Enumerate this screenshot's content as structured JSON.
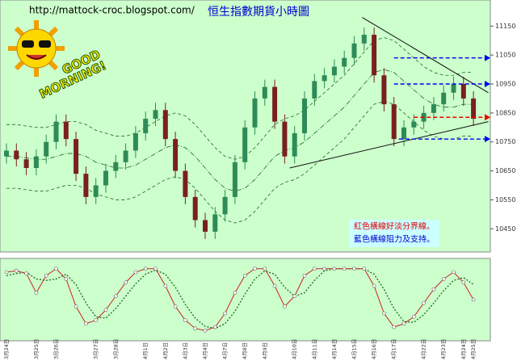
{
  "chart_data": {
    "type": "candlestick",
    "url": "http://mattock-croc.blogspot.com/",
    "title": "恒生指數期貨小時圖",
    "logo_text": [
      "GOOD",
      "MORNING!"
    ],
    "notes": [
      {
        "text": "紅色橫線好淡分界線。",
        "color": "#e00000"
      },
      {
        "text": "藍色橫線阻力及支持。",
        "color": "#0000cc"
      }
    ],
    "categories": [
      "3月24日",
      null,
      null,
      "3月25日",
      null,
      "3月26日",
      null,
      null,
      null,
      "3月27日",
      null,
      "3月28日",
      null,
      null,
      "4月1日",
      null,
      "4月2日",
      null,
      "4月3日",
      null,
      "4月4日",
      null,
      "4月7日",
      null,
      "4月8日",
      null,
      "4月9日",
      null,
      null,
      "4月10日",
      null,
      "4月11日",
      null,
      "4月14日",
      null,
      "4月15日",
      null,
      "4月16日",
      null,
      "4月17日",
      null,
      null,
      "4月22日",
      null,
      "4月23日",
      null,
      "4月24日",
      "4月25日"
    ],
    "open": [
      10700,
      10720,
      10690,
      10660,
      10700,
      10750,
      10820,
      10760,
      10640,
      10560,
      10600,
      10650,
      10680,
      10720,
      10780,
      10830,
      10860,
      10760,
      10650,
      10560,
      10480,
      10440,
      10500,
      10560,
      10680,
      10800,
      10900,
      10940,
      10820,
      10700,
      10780,
      10900,
      10960,
      10980,
      11010,
      11040,
      11090,
      11120,
      10980,
      10880,
      10760,
      10800,
      10820,
      10850,
      10880,
      10920,
      10950,
      10900
    ],
    "high": [
      10745,
      10745,
      10715,
      10725,
      10775,
      10845,
      10845,
      10785,
      10665,
      10625,
      10675,
      10705,
      10745,
      10805,
      10855,
      10885,
      10885,
      10785,
      10675,
      10585,
      10505,
      10525,
      10585,
      10705,
      10825,
      10925,
      10965,
      10965,
      10845,
      10805,
      10925,
      10985,
      11005,
      11035,
      11065,
      11115,
      11145,
      11145,
      11005,
      10905,
      10825,
      10845,
      10875,
      10905,
      10945,
      10975,
      10975,
      10925
    ],
    "low": [
      10675,
      10665,
      10635,
      10635,
      10675,
      10725,
      10735,
      10615,
      10535,
      10535,
      10575,
      10625,
      10655,
      10695,
      10755,
      10805,
      10735,
      10625,
      10535,
      10455,
      10415,
      10415,
      10475,
      10535,
      10655,
      10775,
      10875,
      10795,
      10675,
      10675,
      10755,
      10875,
      10935,
      10955,
      10985,
      11015,
      11065,
      10955,
      10855,
      10735,
      10735,
      10775,
      10795,
      10825,
      10855,
      10895,
      10875,
      10805
    ],
    "close": [
      10720,
      10690,
      10660,
      10700,
      10750,
      10820,
      10760,
      10640,
      10560,
      10600,
      10650,
      10680,
      10720,
      10780,
      10830,
      10860,
      10760,
      10650,
      10560,
      10480,
      10440,
      10500,
      10560,
      10680,
      10800,
      10900,
      10940,
      10820,
      10700,
      10780,
      10900,
      10960,
      10980,
      11010,
      11040,
      11090,
      11120,
      10980,
      10880,
      10760,
      10800,
      10820,
      10850,
      10880,
      10920,
      10950,
      10900,
      10830
    ],
    "up_color": "#2e8b57",
    "down_color": "#7a1f1f",
    "bands": [
      {
        "color": "#226622",
        "dash": "4 3",
        "values": [
          10810,
          10810,
          10805,
          10800,
          10800,
          10810,
          10820,
          10820,
          10810,
          10790,
          10780,
          10770,
          10770,
          10780,
          10800,
          10820,
          10840,
          10850,
          10840,
          10810,
          10770,
          10730,
          10700,
          10690,
          10700,
          10730,
          10770,
          10810,
          10830,
          10840,
          10860,
          10890,
          10920,
          10950,
          10980,
          11020,
          11060,
          11100,
          11110,
          11100,
          11070,
          11040,
          11010,
          10990,
          10980,
          10980,
          10990,
          10990
        ]
      },
      {
        "color": "#226622",
        "dash": "6 2 1 2",
        "values": [
          10700,
          10700,
          10695,
          10690,
          10690,
          10700,
          10710,
          10710,
          10700,
          10680,
          10670,
          10660,
          10660,
          10670,
          10690,
          10710,
          10730,
          10740,
          10730,
          10700,
          10660,
          10620,
          10590,
          10580,
          10590,
          10620,
          10660,
          10700,
          10720,
          10730,
          10750,
          10780,
          10810,
          10840,
          10870,
          10910,
          10950,
          10990,
          11000,
          10990,
          10960,
          10930,
          10900,
          10880,
          10870,
          10870,
          10880,
          10880
        ]
      },
      {
        "color": "#226622",
        "dash": "4 3",
        "values": [
          10590,
          10590,
          10585,
          10580,
          10580,
          10590,
          10600,
          10600,
          10590,
          10570,
          10560,
          10550,
          10550,
          10560,
          10580,
          10600,
          10620,
          10630,
          10620,
          10590,
          10550,
          10510,
          10480,
          10470,
          10480,
          10510,
          10550,
          10590,
          10610,
          10620,
          10640,
          10670,
          10700,
          10730,
          10760,
          10800,
          10840,
          10880,
          10890,
          10880,
          10850,
          10820,
          10790,
          10770,
          10760,
          10760,
          10770,
          10770
        ]
      }
    ],
    "trendlines": [
      {
        "x": [
          28.5,
          48.5
        ],
        "y": [
          10660,
          10820
        ]
      },
      {
        "x": [
          35.8,
          48.5
        ],
        "y": [
          11180,
          10920
        ]
      }
    ],
    "levels": [
      {
        "value": 11040,
        "start": 39,
        "color": "#0000ee"
      },
      {
        "value": 10950,
        "start": 39,
        "color": "#0000ee"
      },
      {
        "value": 10760,
        "start": 39.5,
        "color": "#0000ee"
      },
      {
        "value": 10835,
        "start": 41,
        "color": "#ee0000"
      }
    ],
    "ylim": [
      10370,
      11240
    ],
    "yticks": [
      10450,
      10550,
      10650,
      10750,
      10850,
      10950,
      11050,
      11150
    ],
    "stochastic": {
      "ylim": [
        -10,
        110
      ],
      "k": {
        "color": "#cc2222",
        "values": [
          90,
          92,
          88,
          60,
          85,
          95,
          80,
          40,
          15,
          20,
          35,
          55,
          75,
          90,
          95,
          95,
          70,
          40,
          20,
          8,
          5,
          10,
          30,
          60,
          85,
          95,
          95,
          70,
          40,
          55,
          85,
          95,
          95,
          95,
          95,
          95,
          95,
          70,
          30,
          10,
          15,
          25,
          45,
          65,
          80,
          90,
          75,
          50
        ]
      },
      "d": {
        "color": "#226622",
        "values": [
          85,
          88,
          90,
          80,
          78,
          80,
          87,
          72,
          45,
          25,
          23,
          37,
          55,
          73,
          87,
          93,
          87,
          68,
          43,
          23,
          11,
          8,
          15,
          33,
          58,
          80,
          92,
          87,
          68,
          55,
          60,
          78,
          92,
          95,
          95,
          95,
          95,
          87,
          65,
          37,
          18,
          17,
          28,
          45,
          63,
          78,
          82,
          72
        ]
      }
    }
  }
}
